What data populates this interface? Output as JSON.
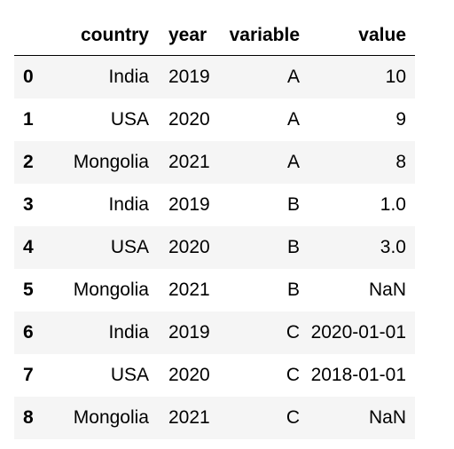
{
  "table": {
    "columns": {
      "index": "",
      "country": "country",
      "year": "year",
      "variable": "variable",
      "value": "value"
    },
    "rows": [
      {
        "index": "0",
        "country": "India",
        "year": "2019",
        "variable": "A",
        "value": "10"
      },
      {
        "index": "1",
        "country": "USA",
        "year": "2020",
        "variable": "A",
        "value": "9"
      },
      {
        "index": "2",
        "country": "Mongolia",
        "year": "2021",
        "variable": "A",
        "value": "8"
      },
      {
        "index": "3",
        "country": "India",
        "year": "2019",
        "variable": "B",
        "value": "1.0"
      },
      {
        "index": "4",
        "country": "USA",
        "year": "2020",
        "variable": "B",
        "value": "3.0"
      },
      {
        "index": "5",
        "country": "Mongolia",
        "year": "2021",
        "variable": "B",
        "value": "NaN"
      },
      {
        "index": "6",
        "country": "India",
        "year": "2019",
        "variable": "C",
        "value": "2020-01-01"
      },
      {
        "index": "7",
        "country": "USA",
        "year": "2020",
        "variable": "C",
        "value": "2018-01-01"
      },
      {
        "index": "8",
        "country": "Mongolia",
        "year": "2021",
        "variable": "C",
        "value": "NaN"
      }
    ]
  }
}
